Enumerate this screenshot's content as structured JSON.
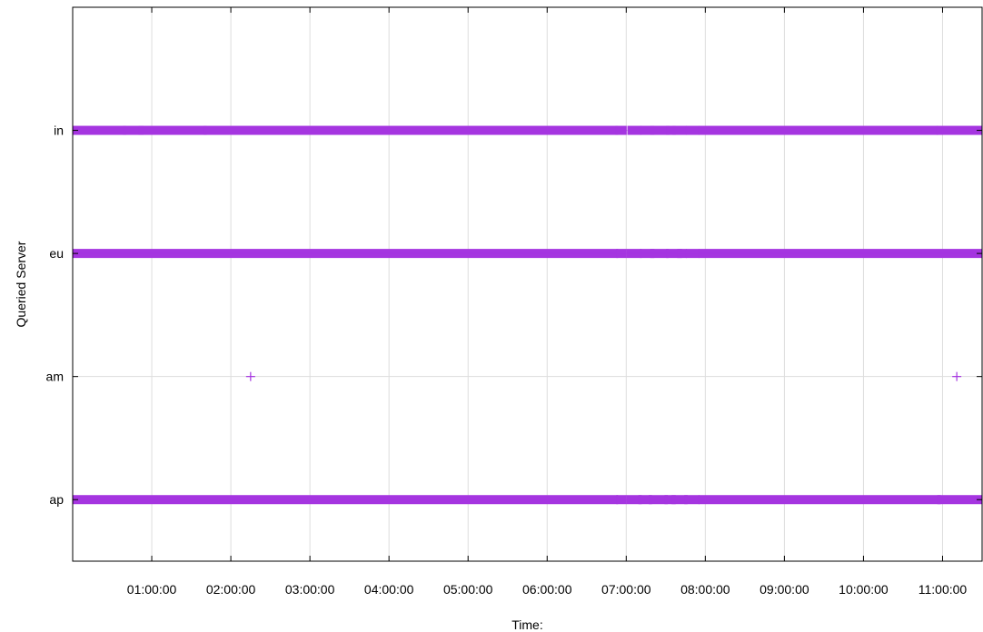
{
  "chart_data": {
    "type": "scatter",
    "title": "",
    "xlabel": "Time:",
    "ylabel": "Queried Server",
    "x_unit": "hours",
    "xlim": [
      0,
      11.5
    ],
    "x_ticks": [
      1,
      2,
      3,
      4,
      5,
      6,
      7,
      8,
      9,
      10,
      11
    ],
    "x_tick_labels": [
      "01:00:00",
      "02:00:00",
      "03:00:00",
      "04:00:00",
      "05:00:00",
      "06:00:00",
      "07:00:00",
      "08:00:00",
      "09:00:00",
      "10:00:00",
      "11:00:00"
    ],
    "categories": [
      "ap",
      "am",
      "eu",
      "in"
    ],
    "ylim": [
      -0.5,
      4.0
    ],
    "grid": true,
    "marker": "+",
    "series": [
      {
        "color": "#a535e0",
        "category": "in",
        "segments": [
          [
            0.0,
            0.63
          ],
          [
            0.68,
            0.85
          ],
          [
            0.88,
            1.65
          ],
          [
            1.7,
            6.85
          ],
          [
            6.91,
            6.96
          ],
          [
            7.06,
            7.15
          ],
          [
            7.22,
            7.31
          ],
          [
            7.35,
            7.5
          ],
          [
            7.55,
            7.58
          ],
          [
            7.63,
            7.72
          ],
          [
            7.8,
            7.88
          ],
          [
            7.96,
            10.9
          ],
          [
            10.97,
            11.5
          ]
        ],
        "points": []
      },
      {
        "color": "#a535e0",
        "category": "eu",
        "segments": [
          [
            0.0,
            6.85
          ],
          [
            6.92,
            6.96
          ],
          [
            7.05,
            7.15
          ],
          [
            7.22,
            7.31
          ],
          [
            7.35,
            7.49
          ],
          [
            7.55,
            7.66
          ],
          [
            7.69,
            7.72
          ],
          [
            7.8,
            7.88
          ],
          [
            7.96,
            11.5
          ]
        ],
        "points": []
      },
      {
        "color": "#a535e0",
        "category": "am",
        "segments": [],
        "points": [
          2.25,
          11.18
        ]
      },
      {
        "color": "#a535e0",
        "category": "ap",
        "segments": [
          [
            0.0,
            6.85
          ],
          [
            6.92,
            6.96
          ],
          [
            7.05,
            7.15
          ],
          [
            7.2,
            7.28
          ],
          [
            7.33,
            7.48
          ],
          [
            7.53,
            7.58
          ],
          [
            7.62,
            7.73
          ],
          [
            7.78,
            7.88
          ],
          [
            7.96,
            10.93
          ],
          [
            10.98,
            11.5
          ]
        ],
        "points": []
      }
    ]
  }
}
